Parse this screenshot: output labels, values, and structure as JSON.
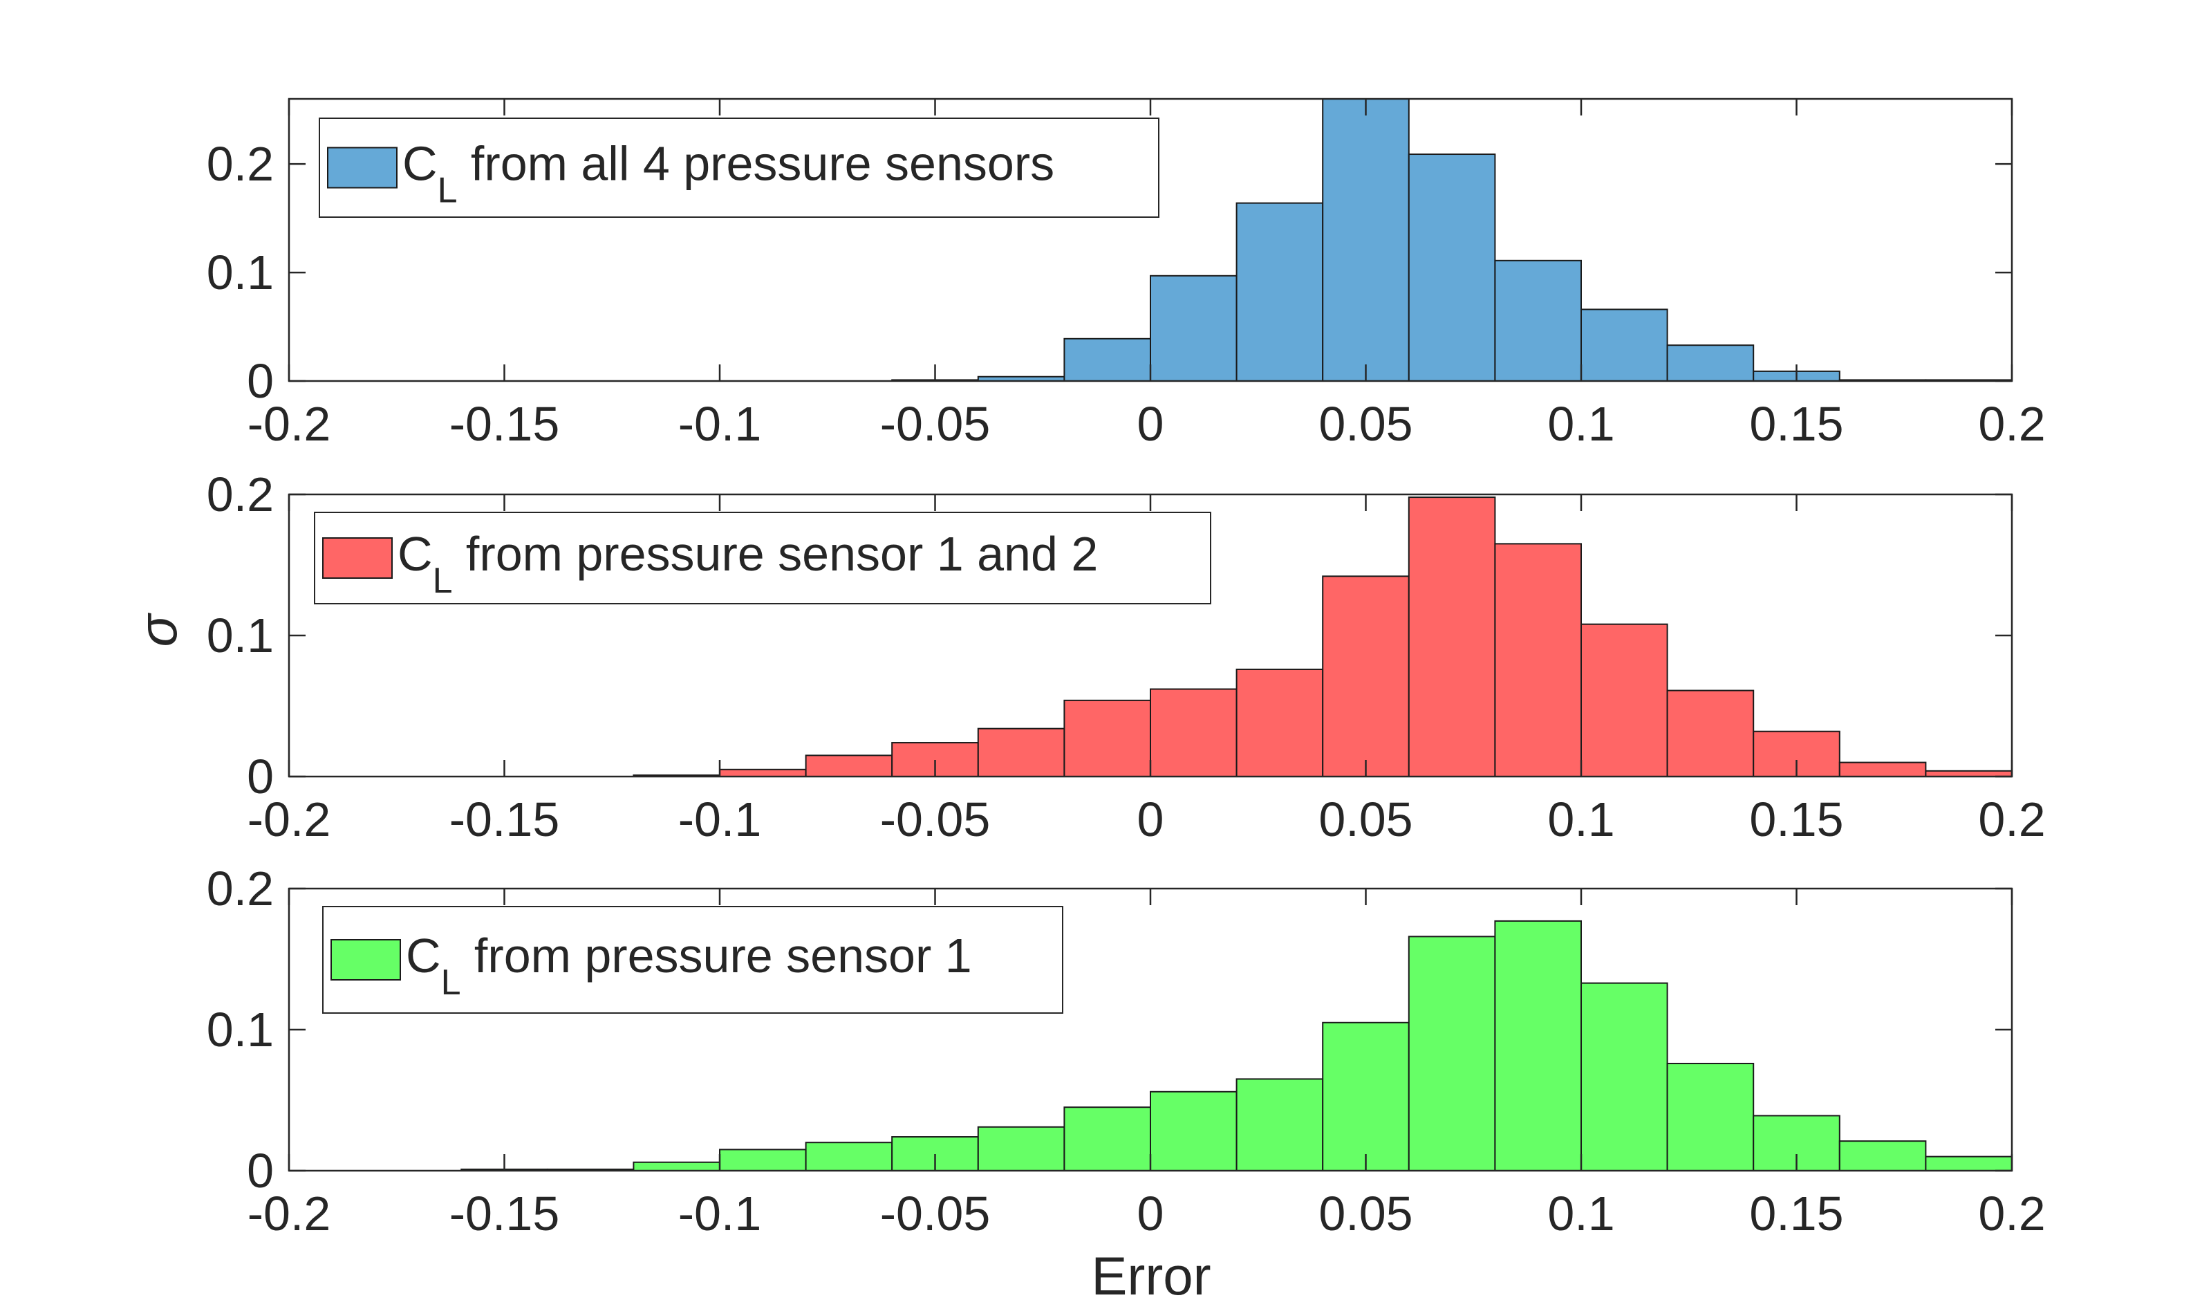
{
  "figure": {
    "xlabel": "Error",
    "ylabel": "σ",
    "xlim": [
      -0.2,
      0.2
    ],
    "x_ticks": [
      -0.2,
      -0.15,
      -0.1,
      -0.05,
      0,
      0.05,
      0.1,
      0.15,
      0.2
    ],
    "x_tick_labels": [
      "-0.2",
      "-0.15",
      "-0.1",
      "-0.05",
      "0",
      "0.05",
      "0.1",
      "0.15",
      "0.2"
    ],
    "bin_width": 0.02
  },
  "chart_data": [
    {
      "type": "bar",
      "subtype": "histogram",
      "legend": {
        "main": "C",
        "sub": "L",
        "text": " from all 4 pressure sensors",
        "placement": "top-left"
      },
      "color": "#65A9D7",
      "ylim": [
        0,
        0.26
      ],
      "y_ticks": [
        0,
        0.1,
        0.2
      ],
      "y_tick_labels": [
        "0",
        "0.1",
        "0.2"
      ],
      "bin_edges": [
        -0.06,
        -0.04,
        -0.02,
        0.0,
        0.02,
        0.04,
        0.06,
        0.08,
        0.1,
        0.12,
        0.14,
        0.16,
        0.18,
        0.2
      ],
      "values": [
        0.001,
        0.004,
        0.039,
        0.097,
        0.164,
        0.262,
        0.209,
        0.111,
        0.066,
        0.033,
        0.009,
        0.001,
        0.001
      ]
    },
    {
      "type": "bar",
      "subtype": "histogram",
      "legend": {
        "main": "C",
        "sub": "L",
        "text": " from pressure sensor 1 and 2",
        "placement": "top-left"
      },
      "color": "#FF6666",
      "ylim": [
        0,
        0.2
      ],
      "y_ticks": [
        0,
        0.1,
        0.2
      ],
      "y_tick_labels": [
        "0",
        "0.1",
        "0.2"
      ],
      "bin_edges": [
        -0.12,
        -0.1,
        -0.08,
        -0.06,
        -0.04,
        -0.02,
        0.0,
        0.02,
        0.04,
        0.06,
        0.08,
        0.1,
        0.12,
        0.14,
        0.16,
        0.18,
        0.2
      ],
      "values": [
        0.001,
        0.005,
        0.015,
        0.024,
        0.034,
        0.054,
        0.062,
        0.076,
        0.142,
        0.198,
        0.165,
        0.108,
        0.061,
        0.032,
        0.01,
        0.004
      ]
    },
    {
      "type": "bar",
      "subtype": "histogram",
      "legend": {
        "main": "C",
        "sub": "L",
        "text": " from pressure sensor 1",
        "placement": "top-left"
      },
      "color": "#66FF66",
      "ylim": [
        0,
        0.2
      ],
      "y_ticks": [
        0,
        0.1,
        0.2
      ],
      "y_tick_labels": [
        "0",
        "0.1",
        "0.2"
      ],
      "bin_edges": [
        -0.16,
        -0.14,
        -0.12,
        -0.1,
        -0.08,
        -0.06,
        -0.04,
        -0.02,
        0.0,
        0.02,
        0.04,
        0.06,
        0.08,
        0.1,
        0.12,
        0.14,
        0.16,
        0.18,
        0.2
      ],
      "values": [
        0.001,
        0.001,
        0.006,
        0.015,
        0.02,
        0.024,
        0.031,
        0.045,
        0.056,
        0.065,
        0.105,
        0.166,
        0.177,
        0.133,
        0.076,
        0.039,
        0.021,
        0.01
      ]
    }
  ]
}
